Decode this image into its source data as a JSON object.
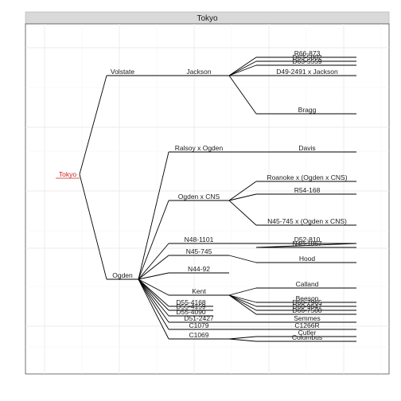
{
  "panel": {
    "title": "Tokyo"
  },
  "tree": {
    "name": "Tokyo",
    "children": [
      {
        "name": "Volstate",
        "children": [
          {
            "name": "Jackson",
            "children": [
              {
                "name": "R66-873"
              },
              {
                "name": "D63-5802"
              },
              {
                "name": "D63-5559"
              },
              {
                "name": "D49-2491 x Jackson"
              },
              {
                "name": "Bragg"
              }
            ]
          }
        ]
      },
      {
        "name": "Ogden",
        "children": [
          {
            "name": "Ralsoy x Ogden",
            "children": [
              {
                "name": "Davis"
              }
            ]
          },
          {
            "name": "Ogden x CNS",
            "children": [
              {
                "name": "Roanoke x (Ogden x CNS)"
              },
              {
                "name": "R54-168"
              },
              {
                "name": "N45-745 x (Ogden x CNS)"
              }
            ]
          },
          {
            "name": "N48-1101",
            "children": [
              {
                "name": "D52-810"
              },
              {
                "name": "N48-1867"
              }
            ]
          },
          {
            "name": "N45-745",
            "children": [
              {
                "name": "Hood"
              }
            ]
          },
          {
            "name": "N44-92"
          },
          {
            "name": "Kent",
            "children": [
              {
                "name": "Calland"
              },
              {
                "name": "Beeson"
              },
              {
                "name": "D60-7965"
              },
              {
                "name": "D60-9647"
              },
              {
                "name": "D66-7500"
              }
            ]
          },
          {
            "name": "D55-4168"
          },
          {
            "name": "D55-4159"
          },
          {
            "name": "D55-4090"
          },
          {
            "name": "D51-2427",
            "children": [
              {
                "name": "Semmes"
              }
            ]
          },
          {
            "name": "C1079",
            "children": [
              {
                "name": "C1266R"
              }
            ]
          },
          {
            "name": "C1069",
            "children": [
              {
                "name": "Cutler"
              },
              {
                "name": "Columbus"
              }
            ]
          }
        ]
      }
    ]
  }
}
